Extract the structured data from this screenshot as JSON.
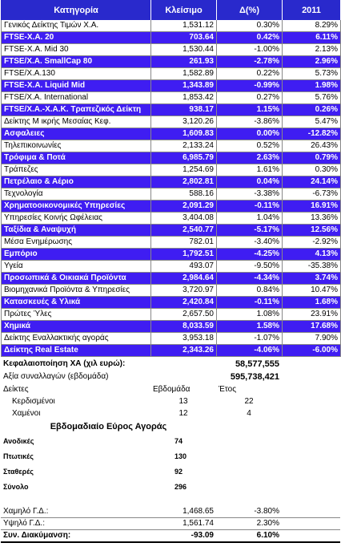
{
  "headers": {
    "category": "Κατηγορία",
    "close": "Κλείσιμο",
    "change": "Δ(%)",
    "year": "2011"
  },
  "rows": [
    {
      "cat": "Γενικός Δείκτης Τιμών Χ.Α.",
      "close": "1,531.12",
      "chg": "0.30%",
      "yr": "8.29%",
      "hl": false
    },
    {
      "cat": "FTSE-X.A. 20",
      "close": "703.64",
      "chg": "0.42%",
      "yr": "6.11%",
      "hl": true
    },
    {
      "cat": "FTSE-X.A. Mid 30",
      "close": "1,530.44",
      "chg": "-1.00%",
      "yr": "2.13%",
      "hl": false
    },
    {
      "cat": "FTSE/X.A. SmallCap 80",
      "close": "261.93",
      "chg": "-2.78%",
      "yr": "2.96%",
      "hl": true
    },
    {
      "cat": "FTSE/X.A.130",
      "close": "1,582.89",
      "chg": "0.22%",
      "yr": "5.73%",
      "hl": false
    },
    {
      "cat": "FTSE-X.A. Liquid Mid",
      "close": "1,343.89",
      "chg": "-0.99%",
      "yr": "1.98%",
      "hl": true
    },
    {
      "cat": "FTSE/X.A. International",
      "close": "1,853.42",
      "chg": "0.27%",
      "yr": "5.76%",
      "hl": false
    },
    {
      "cat": "FTSE/X.A.-X.A.K. Τραπεζικός Δείκτη",
      "close": "938.17",
      "chg": "1.15%",
      "yr": "0.26%",
      "hl": true
    },
    {
      "cat": "Δείκτης Μ ικρής Μεσαίας Κεφ.",
      "close": "3,120.26",
      "chg": "-3.86%",
      "yr": "5.47%",
      "hl": false
    },
    {
      "cat": "Ασφαλειες",
      "close": "1,609.83",
      "chg": "0.00%",
      "yr": "-12.82%",
      "hl": true
    },
    {
      "cat": "Τηλεπικοινωνίες",
      "close": "2,133.24",
      "chg": "0.52%",
      "yr": "26.43%",
      "hl": false
    },
    {
      "cat": "Τρόφιμα & Ποτά",
      "close": "6,985.79",
      "chg": "2.63%",
      "yr": "0.79%",
      "hl": true
    },
    {
      "cat": "Τράπεζες",
      "close": "1,254.69",
      "chg": "1.61%",
      "yr": "0.30%",
      "hl": false
    },
    {
      "cat": "Πετρέλαιο & Αέριο",
      "close": "2,802.81",
      "chg": "0.04%",
      "yr": "24.14%",
      "hl": true
    },
    {
      "cat": "Τεχνολογία",
      "close": "588.16",
      "chg": "-3.38%",
      "yr": "-6.73%",
      "hl": false
    },
    {
      "cat": "Χρηματοοικονομικές Υπηρεσίες",
      "close": "2,091.29",
      "chg": "-0.11%",
      "yr": "16.91%",
      "hl": true
    },
    {
      "cat": "Υπηρεσίες Κοινής Ωφέλειας",
      "close": "3,404.08",
      "chg": "1.04%",
      "yr": "13.36%",
      "hl": false
    },
    {
      "cat": "Ταξίδια & Αναψυχή",
      "close": "2,540.77",
      "chg": "-5.17%",
      "yr": "12.56%",
      "hl": true
    },
    {
      "cat": "Μέσα Ενημέρωσης",
      "close": "782.01",
      "chg": "-3.40%",
      "yr": "-2.92%",
      "hl": false
    },
    {
      "cat": "Εμπόριο",
      "close": "1,792.51",
      "chg": "-4.25%",
      "yr": "4.13%",
      "hl": true
    },
    {
      "cat": "Υγεία",
      "close": "493.07",
      "chg": "-9.50%",
      "yr": "-35.38%",
      "hl": false
    },
    {
      "cat": "Προσωπικά & Οικιακά Προϊόντα",
      "close": "2,984.64",
      "chg": "-4.34%",
      "yr": "3.74%",
      "hl": true
    },
    {
      "cat": "Βιομηχανικά Προϊόντα & Υπηρεσίες",
      "close": "3,720.97",
      "chg": "0.84%",
      "yr": "10.47%",
      "hl": false
    },
    {
      "cat": "Κατασκευές & Υλικά",
      "close": "2,420.84",
      "chg": "-0.11%",
      "yr": "1.68%",
      "hl": true
    },
    {
      "cat": "Πρώτες Ύλες",
      "close": "2,657.50",
      "chg": "1.08%",
      "yr": "23.91%",
      "hl": false
    },
    {
      "cat": "Χημικά",
      "close": "8,033.59",
      "chg": "1.58%",
      "yr": "17.68%",
      "hl": true
    },
    {
      "cat": "Δείκτης Εναλλακτικής αγοράς",
      "close": "3,953.18",
      "chg": "-1.07%",
      "yr": "7.90%",
      "hl": false
    },
    {
      "cat": "Δείκτης Real Estate",
      "close": "2,343.26",
      "chg": "-4.06%",
      "yr": "-6.00%",
      "hl": true
    }
  ],
  "capitalization": {
    "label": "Κεφαλαιοποίηση ΧΑ (χιλ ευρώ):",
    "value": "58,577,555"
  },
  "volume": {
    "label": "Αξία συναλλαγών (εβδομάδα)",
    "value": "595,738,421"
  },
  "indices": {
    "label": "Δείκτες",
    "week_header": "Εβδομάδα",
    "year_header": "Έτος",
    "gainers_label": "Κερδισμένοι",
    "gainers_week": "13",
    "gainers_year": "22",
    "losers_label": "Χαμένοι",
    "losers_week": "12",
    "losers_year": "4"
  },
  "breadth": {
    "title": "Εβδομαδιαίο Εύρος Αγοράς",
    "items": [
      {
        "label": "Ανοδικές",
        "value": "74"
      },
      {
        "label": "Πτωτικές",
        "value": "130"
      },
      {
        "label": "Σταθερές",
        "value": "92"
      },
      {
        "label": "Σύνολο",
        "value": "296"
      }
    ]
  },
  "stats": [
    {
      "label": "Χαμηλό Γ.Δ.:",
      "value": "1,468.65",
      "pct": "-3.80%"
    },
    {
      "label": "Υψηλό Γ.Δ.:",
      "value": "1,561.74",
      "pct": "2.30%"
    },
    {
      "label": "Συν. Διακύμανση:",
      "value": "-93.09",
      "pct": "6.10%"
    }
  ]
}
